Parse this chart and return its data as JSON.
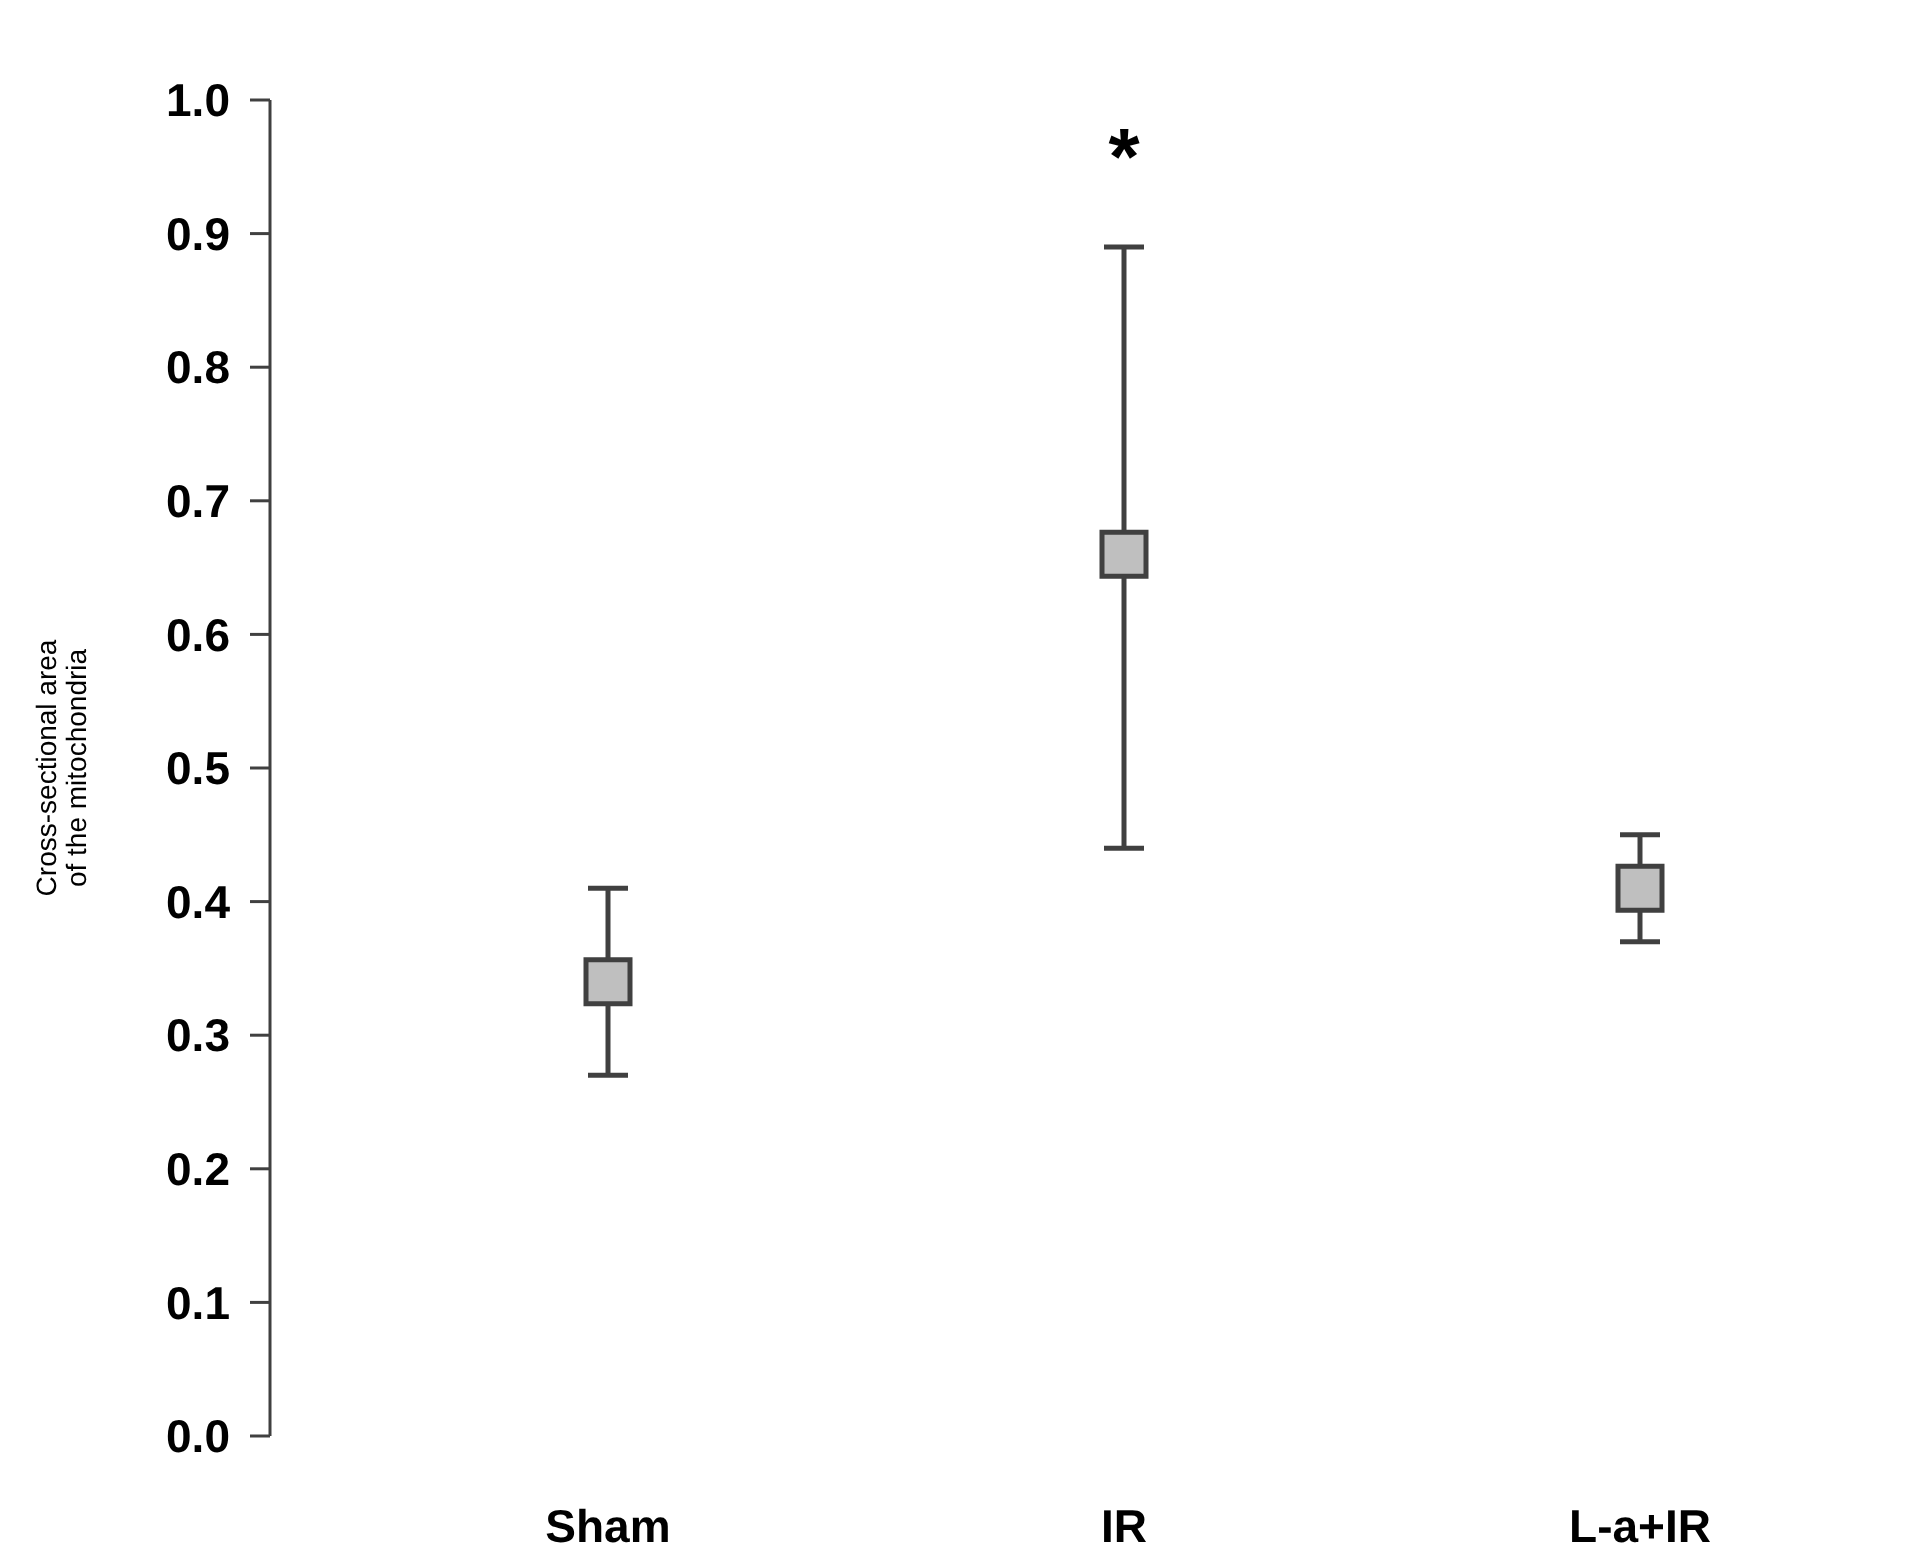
{
  "chart_data": {
    "type": "scatter",
    "ylabel": "Cross-sectional area\nof the mitochondria",
    "categories": [
      "Sham",
      "IR",
      "L-a+IR"
    ],
    "series": [
      {
        "color": "#bfbfbf",
        "values": [
          0.34,
          0.66,
          0.41
        ],
        "errors": [
          [
            0.27,
            0.41
          ],
          [
            0.44,
            0.89
          ],
          [
            0.37,
            0.45
          ]
        ]
      }
    ],
    "marker": "square",
    "ylim": [
      0,
      1
    ],
    "yticks": [
      {
        "value": 0,
        "label": "0.0"
      },
      0.1,
      0.2,
      0.3,
      0.4,
      0.5,
      0.6,
      0.7,
      0.8,
      0.9,
      {
        "value": 1,
        "label": "1.0"
      }
    ],
    "annotations": [
      "*"
    ]
  }
}
